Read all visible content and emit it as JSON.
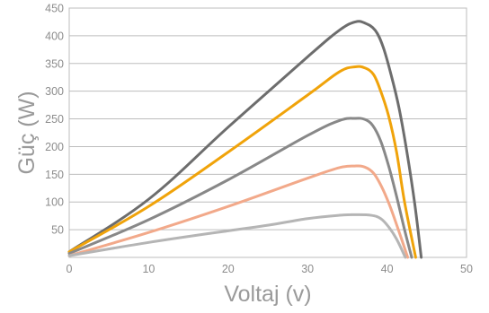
{
  "chart_data": {
    "type": "line",
    "title": "",
    "xlabel": "Voltaj (v)",
    "ylabel": "Güç (W)",
    "xlim": [
      0,
      50
    ],
    "ylim": [
      0,
      450
    ],
    "xticks": [
      0,
      10,
      20,
      30,
      40,
      50
    ],
    "yticks": [
      50,
      100,
      150,
      200,
      250,
      300,
      350,
      400,
      450
    ],
    "grid": "horizontal",
    "legend": "none",
    "series": [
      {
        "color": "#6d6d6d",
        "points": [
          [
            0,
            10
          ],
          [
            10,
            105
          ],
          [
            20,
            235
          ],
          [
            30,
            362
          ],
          [
            34,
            410
          ],
          [
            36,
            425
          ],
          [
            37.2,
            423
          ],
          [
            38.5,
            410
          ],
          [
            39.5,
            380
          ],
          [
            40.5,
            330
          ],
          [
            41.5,
            270
          ],
          [
            42.5,
            190
          ],
          [
            43.5,
            95
          ],
          [
            44.3,
            0
          ]
        ]
      },
      {
        "color": "#f0a30a",
        "points": [
          [
            0,
            10
          ],
          [
            10,
            92
          ],
          [
            20,
            190
          ],
          [
            30,
            293
          ],
          [
            34,
            335
          ],
          [
            36,
            344
          ],
          [
            37.2,
            342
          ],
          [
            38.3,
            330
          ],
          [
            39.2,
            300
          ],
          [
            40.2,
            255
          ],
          [
            41.2,
            190
          ],
          [
            42.2,
            100
          ],
          [
            43.6,
            0
          ]
        ]
      },
      {
        "color": "#888888",
        "points": [
          [
            0,
            7
          ],
          [
            10,
            68
          ],
          [
            20,
            140
          ],
          [
            30,
            220
          ],
          [
            34,
            247
          ],
          [
            36,
            251
          ],
          [
            37.2,
            249
          ],
          [
            38.2,
            238
          ],
          [
            39.2,
            210
          ],
          [
            40.2,
            165
          ],
          [
            41.2,
            110
          ],
          [
            42.2,
            50
          ],
          [
            43.1,
            0
          ]
        ]
      },
      {
        "color": "#f2a98a",
        "points": [
          [
            0,
            3
          ],
          [
            10,
            45
          ],
          [
            20,
            92
          ],
          [
            30,
            143
          ],
          [
            34,
            162
          ],
          [
            36,
            165
          ],
          [
            37.2,
            163
          ],
          [
            38.3,
            152
          ],
          [
            39.3,
            128
          ],
          [
            40.3,
            95
          ],
          [
            41.3,
            55
          ],
          [
            42.6,
            0
          ]
        ]
      },
      {
        "color": "#b5b5b5",
        "points": [
          [
            0,
            3
          ],
          [
            10,
            27
          ],
          [
            20,
            48
          ],
          [
            25,
            58
          ],
          [
            30,
            70
          ],
          [
            34,
            76
          ],
          [
            36,
            77
          ],
          [
            38,
            76
          ],
          [
            39.2,
            70
          ],
          [
            40.2,
            55
          ],
          [
            41.2,
            33
          ],
          [
            42.3,
            0
          ]
        ]
      }
    ]
  }
}
